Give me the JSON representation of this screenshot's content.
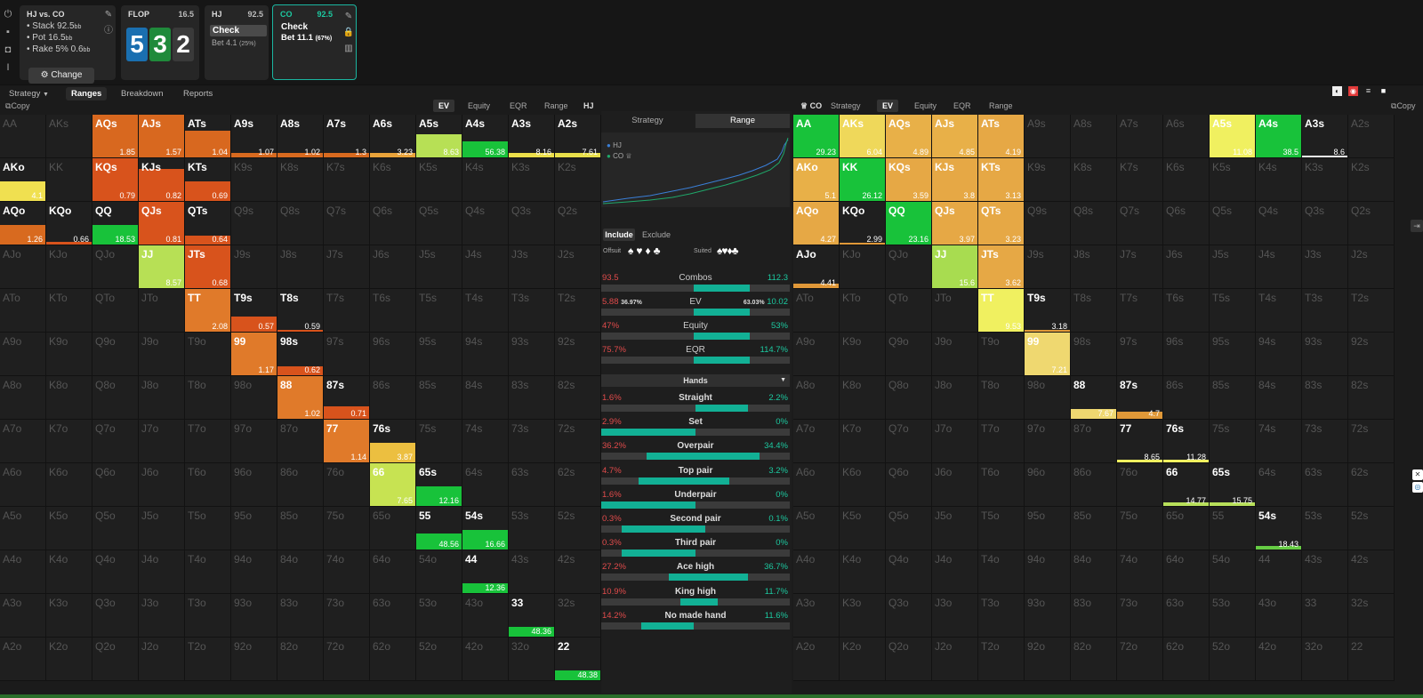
{
  "summary": {
    "title": "HJ vs. CO",
    "stack": "Stack 92.5",
    "stack_unit": "bb",
    "pot": "Pot 16.5",
    "pot_unit": "bb",
    "rake": "Rake 5% 0.6",
    "rake_unit": "bb",
    "change_label": "Change"
  },
  "flop": {
    "label": "FLOP",
    "pot": "16.5",
    "cards": [
      {
        "rank": "5",
        "color": "#1a6fb0"
      },
      {
        "rank": "3",
        "color": "#1f8a3b"
      },
      {
        "rank": "2",
        "color": "#3a3a3a"
      }
    ]
  },
  "hj_panel": {
    "label": "HJ",
    "stack": "92.5",
    "action1": "Check",
    "action2": "Bet 4.1",
    "action2_pct": "(25%)"
  },
  "co_panel": {
    "label": "CO",
    "stack": "92.5",
    "action1": "Check",
    "action2": "Bet 11.1",
    "action2_pct": "(67%)"
  },
  "tabs": [
    "Strategy",
    "Ranges",
    "Breakdown",
    "Reports"
  ],
  "active_tab": "Ranges",
  "left": {
    "copy": "Copy",
    "metrics": [
      "EV",
      "Equity",
      "EQR",
      "Range"
    ],
    "active": "EV",
    "player": "HJ"
  },
  "right": {
    "copy": "Copy",
    "player": "CO",
    "metrics": [
      "Strategy",
      "EV",
      "Equity",
      "EQR",
      "Range"
    ],
    "active": "EV"
  },
  "middle": {
    "segments": [
      "Strategy",
      "Range"
    ],
    "active_segment": "Range",
    "legend": [
      "HJ",
      "CO"
    ],
    "include": "Include",
    "exclude": "Exclude",
    "offsuit": "Offsuit",
    "suited": "Suited",
    "stats": [
      {
        "label": "Combos",
        "left": "93.5",
        "right": "112.3",
        "share": 0.45
      },
      {
        "label": "EV",
        "left": "5.88",
        "left_pct": "36.97%",
        "right": "10.02",
        "right_pct": "63.03%",
        "share": 0.37
      },
      {
        "label": "Equity",
        "left": "47%",
        "right": "53%",
        "share": 0.47
      },
      {
        "label": "EQR",
        "left": "75.7%",
        "right": "114.7%",
        "share": 0.48
      }
    ],
    "hands_label": "Hands",
    "hands": [
      {
        "label": "Straight",
        "left": "1.6%",
        "right": "2.2%",
        "fill": [
          0.5,
          0.78
        ]
      },
      {
        "label": "Set",
        "left": "2.9%",
        "right": "0%",
        "fill": [
          0,
          0.5
        ]
      },
      {
        "label": "Overpair",
        "left": "36.2%",
        "right": "34.4%",
        "fill": [
          0.24,
          0.84
        ]
      },
      {
        "label": "Top pair",
        "left": "4.7%",
        "right": "3.2%",
        "fill": [
          0.2,
          0.68
        ]
      },
      {
        "label": "Underpair",
        "left": "1.6%",
        "right": "0%",
        "fill": [
          0,
          0.5
        ]
      },
      {
        "label": "Second pair",
        "left": "0.3%",
        "right": "0.1%",
        "fill": [
          0.11,
          0.55
        ]
      },
      {
        "label": "Third pair",
        "left": "0.3%",
        "right": "0%",
        "fill": [
          0.11,
          0.5
        ]
      },
      {
        "label": "Ace high",
        "left": "27.2%",
        "right": "36.7%",
        "fill": [
          0.36,
          0.78
        ]
      },
      {
        "label": "King high",
        "left": "10.9%",
        "right": "11.7%",
        "fill": [
          0.42,
          0.62
        ]
      },
      {
        "label": "No made hand",
        "left": "14.2%",
        "right": "11.6%",
        "fill": [
          0.21,
          0.49
        ]
      }
    ]
  },
  "ranks": [
    "A",
    "K",
    "Q",
    "J",
    "T",
    "9",
    "8",
    "7",
    "6",
    "5",
    "4",
    "3",
    "2"
  ],
  "hj_cells": {
    "AQs": {
      "v": "1.85",
      "c": "#d8681f",
      "f": 1
    },
    "AJs": {
      "v": "1.57",
      "c": "#d8681f",
      "f": 1
    },
    "ATs": {
      "v": "1.04",
      "c": "#d8681f",
      "f": 0.62
    },
    "A9s": {
      "v": "1.07",
      "c": "#d86a1f",
      "f": 0.1
    },
    "A8s": {
      "v": "1.02",
      "c": "#d86a1f",
      "f": 0.1
    },
    "A7s": {
      "v": "1.3",
      "c": "#d86a1f",
      "f": 0.1
    },
    "A6s": {
      "v": "3.23",
      "c": "#e9a33a",
      "f": 0.1
    },
    "A5s": {
      "v": "8.63",
      "c": "#b7e055",
      "f": 0.55
    },
    "A4s": {
      "v": "56.38",
      "c": "#18c23a",
      "f": 0.38
    },
    "A3s": {
      "v": "8.16",
      "c": "#ecdf4a",
      "f": 0.1
    },
    "A2s": {
      "v": "7.61",
      "c": "#e8df4a",
      "f": 0.1
    },
    "AKo": {
      "v": "4.1",
      "c": "#f0e050",
      "f": 0.45
    },
    "KQs": {
      "v": "0.79",
      "c": "#d8531c",
      "f": 1
    },
    "KJs": {
      "v": "0.82",
      "c": "#d8531c",
      "f": 0.75
    },
    "KTs": {
      "v": "0.69",
      "c": "#d8531c",
      "f": 0.45
    },
    "AQo": {
      "v": "1.26",
      "c": "#d86a1f",
      "f": 0.45
    },
    "KQo": {
      "v": "0.66",
      "c": "#d8531c",
      "f": 0.06
    },
    "QQ": {
      "v": "18.53",
      "c": "#18c23a",
      "f": 0.45
    },
    "QJs": {
      "v": "0.81",
      "c": "#d8531c",
      "f": 1
    },
    "QTs": {
      "v": "0.64",
      "c": "#d8531c",
      "f": 0.2
    },
    "JJ": {
      "v": "8.57",
      "c": "#b7e055",
      "f": 1
    },
    "JTs": {
      "v": "0.68",
      "c": "#d8531c",
      "f": 1
    },
    "TT": {
      "v": "2.08",
      "c": "#e07a2a",
      "f": 1
    },
    "T9s": {
      "v": "0.57",
      "c": "#d8531c",
      "f": 0.35
    },
    "T8s": {
      "v": "0.59",
      "c": "#d8531c",
      "f": 0.04
    },
    "99": {
      "v": "1.17",
      "c": "#e07a2a",
      "f": 1
    },
    "98s": {
      "v": "0.62",
      "c": "#d8531c",
      "f": 0.2
    },
    "88": {
      "v": "1.02",
      "c": "#e07a2a",
      "f": 1
    },
    "87s": {
      "v": "0.71",
      "c": "#d8531c",
      "f": 0.3
    },
    "77": {
      "v": "1.14",
      "c": "#e07a2a",
      "f": 1
    },
    "76s": {
      "v": "3.87",
      "c": "#ecbf40",
      "f": 0.45
    },
    "66": {
      "v": "7.65",
      "c": "#c7e352",
      "f": 1
    },
    "65s": {
      "v": "12.16",
      "c": "#18c23a",
      "f": 0.45
    },
    "55": {
      "v": "48.56",
      "c": "#18c23a",
      "f": 0.38
    },
    "54s": {
      "v": "16.66",
      "c": "#18c23a",
      "f": 0.45
    },
    "44": {
      "v": "12.36",
      "c": "#18c23a",
      "f": 0.22
    },
    "33": {
      "v": "48.36",
      "c": "#18c23a",
      "f": 0.22
    },
    "22": {
      "v": "48.38",
      "c": "#18c23a",
      "f": 0.22
    }
  },
  "co_cells": {
    "AA": {
      "v": "29.23",
      "c": "#18c23a",
      "f": 1
    },
    "AKs": {
      "v": "6.04",
      "c": "#efd85a",
      "f": 1
    },
    "AQs": {
      "v": "4.89",
      "c": "#e8b048",
      "f": 1
    },
    "AJs": {
      "v": "4.85",
      "c": "#e8b048",
      "f": 1
    },
    "ATs": {
      "v": "4.19",
      "c": "#e6a845",
      "f": 1
    },
    "A5s": {
      "v": "11.08",
      "c": "#f0f060",
      "f": 1
    },
    "A4s": {
      "v": "38.5",
      "c": "#18c23a",
      "f": 1
    },
    "A3s": {
      "v": "8.6",
      "c": "#f2f2f2",
      "f": 0.04
    },
    "AKo": {
      "v": "5.1",
      "c": "#e8b048",
      "f": 1
    },
    "KK": {
      "v": "26.12",
      "c": "#18c23a",
      "f": 1
    },
    "KQs": {
      "v": "3.59",
      "c": "#e6a845",
      "f": 1
    },
    "KJs": {
      "v": "3.8",
      "c": "#e6a845",
      "f": 1
    },
    "KTs": {
      "v": "3.13",
      "c": "#e6a845",
      "f": 1
    },
    "AQo": {
      "v": "4.27",
      "c": "#e6a845",
      "f": 1
    },
    "KQo": {
      "v": "2.99",
      "c": "#e09838",
      "f": 0.04
    },
    "QQ": {
      "v": "23.16",
      "c": "#18c23a",
      "f": 1
    },
    "QJs": {
      "v": "3.97",
      "c": "#e6a845",
      "f": 1
    },
    "QTs": {
      "v": "3.23",
      "c": "#e6a845",
      "f": 1
    },
    "AJo": {
      "v": "4.41",
      "c": "#e09838",
      "f": 0.1
    },
    "JJ": {
      "v": "15.6",
      "c": "#a8dc50",
      "f": 1
    },
    "JTs": {
      "v": "3.62",
      "c": "#e6a845",
      "f": 1
    },
    "TT": {
      "v": "9.53",
      "c": "#f0f060",
      "f": 1
    },
    "T9s": {
      "v": "3.18",
      "c": "#e09838",
      "f": 0.04
    },
    "99": {
      "v": "7.21",
      "c": "#efd870",
      "f": 1
    },
    "88": {
      "v": "7.67",
      "c": "#efd870",
      "f": 0.22
    },
    "87s": {
      "v": "4.7",
      "c": "#e09838",
      "f": 0.16
    },
    "77": {
      "v": "8.65",
      "c": "#f0f060",
      "f": 0.06
    },
    "76s": {
      "v": "11.28",
      "c": "#f0f060",
      "f": 0.06
    },
    "66": {
      "v": "14.77",
      "c": "#b8e05a",
      "f": 0.08
    },
    "65s": {
      "v": "15.75",
      "c": "#b8e05a",
      "f": 0.08
    },
    "54s": {
      "v": "18.43",
      "c": "#66cc44",
      "f": 0.08
    }
  }
}
